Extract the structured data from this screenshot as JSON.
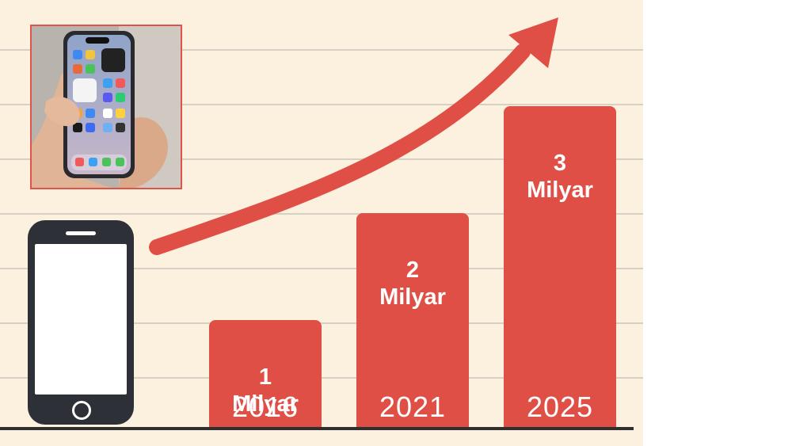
{
  "chart_data": {
    "type": "bar",
    "categories": [
      "2016",
      "2021",
      "2025"
    ],
    "values": [
      1,
      2,
      3
    ],
    "value_labels": [
      {
        "number": "1",
        "unit": "Milyar"
      },
      {
        "number": "2",
        "unit": "Milyar"
      },
      {
        "number": "3",
        "unit": "Milyar"
      }
    ],
    "title": "",
    "xlabel": "",
    "ylabel": "",
    "ylim": [
      0,
      3.4
    ],
    "grid": true,
    "legend": "none"
  },
  "colors": {
    "background": "#fbf1de",
    "bar": "#e04f46",
    "arrow": "#e04f46",
    "phone_icon": "#2d3037",
    "gridline": "#d7d0c4"
  },
  "icons": {
    "phone": "smartphone-icon",
    "trend": "upward-trend-arrow-icon",
    "photo": "hand-holding-smartphone-photo"
  }
}
